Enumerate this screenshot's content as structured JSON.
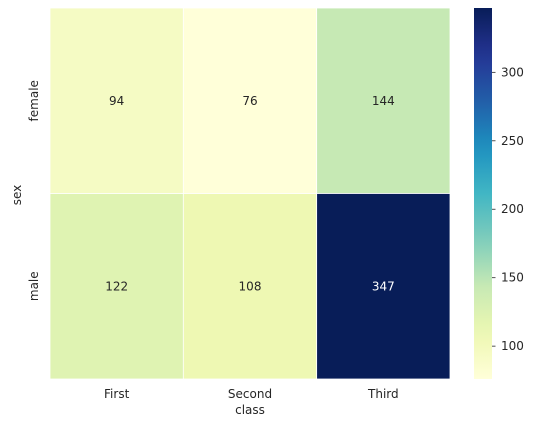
{
  "chart_data": {
    "type": "heatmap",
    "title": "",
    "xlabel": "class",
    "ylabel": "sex",
    "x_categories": [
      "First",
      "Second",
      "Third"
    ],
    "y_categories": [
      "female",
      "male"
    ],
    "values": [
      [
        94,
        76,
        144
      ],
      [
        122,
        108,
        347
      ]
    ],
    "annotations": true,
    "colormap": "YlGnBu",
    "color_range": [
      76,
      347
    ],
    "colorbar": {
      "ticks": [
        100,
        150,
        200,
        250,
        300
      ],
      "tick_labels": [
        "100",
        "150",
        "200",
        "250",
        "300"
      ]
    },
    "cell_border_color": "#ffffff",
    "dark_annotation_text_color": "#ffffff",
    "light_annotation_text_color": "#262626"
  }
}
